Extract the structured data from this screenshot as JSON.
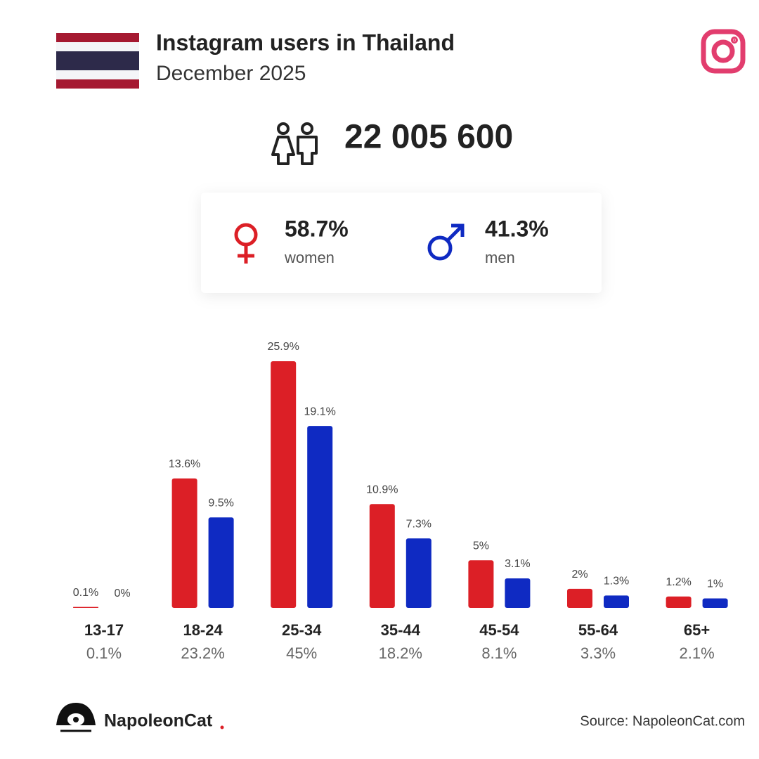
{
  "chart_data": {
    "type": "bar",
    "title": "Instagram users in Thailand",
    "subtitle": "December 2025",
    "total_users": {
      "value": 22005600,
      "label": "22 005 600"
    },
    "categories": [
      "13-17",
      "18-24",
      "25-34",
      "35-44",
      "45-54",
      "55-64",
      "65+"
    ],
    "category_totals": [
      {
        "value": 0.1,
        "label": "0.1%"
      },
      {
        "value": 23.2,
        "label": "23.2%"
      },
      {
        "value": 45,
        "label": "45%"
      },
      {
        "value": 18.2,
        "label": "18.2%"
      },
      {
        "value": 8.1,
        "label": "8.1%"
      },
      {
        "value": 3.3,
        "label": "3.3%"
      },
      {
        "value": 2.1,
        "label": "2.1%"
      }
    ],
    "series": [
      {
        "name": "women",
        "color": "#dc1f26",
        "share": {
          "value": 58.7,
          "label": "58.7%"
        },
        "values": [
          0.1,
          13.6,
          25.9,
          10.9,
          5,
          2,
          1.2
        ],
        "value_labels": [
          "0.1%",
          "13.6%",
          "25.9%",
          "10.9%",
          "5%",
          "2%",
          "1.2%"
        ]
      },
      {
        "name": "men",
        "color": "#0f2ac2",
        "share": {
          "value": 41.3,
          "label": "41.3%"
        },
        "values": [
          0,
          9.5,
          19.1,
          7.3,
          3.1,
          1.3,
          1
        ],
        "value_labels": [
          "0%",
          "9.5%",
          "19.1%",
          "7.3%",
          "3.1%",
          "1.3%",
          "1%"
        ]
      }
    ],
    "brand": "NapoleonCat",
    "source": "Source: NapoleonCat.com"
  }
}
